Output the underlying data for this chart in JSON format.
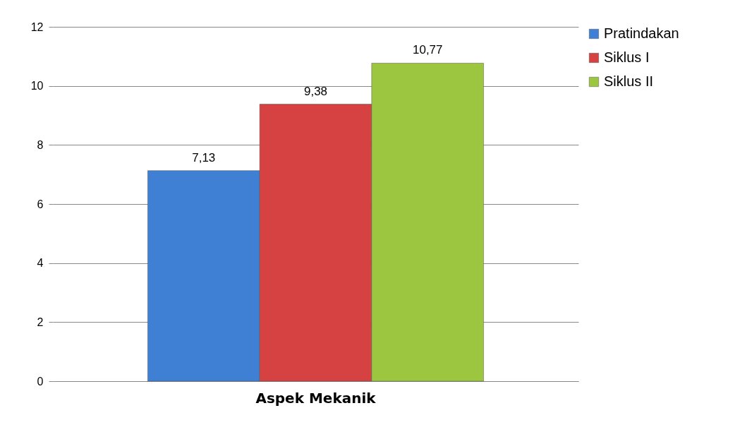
{
  "chart_data": {
    "type": "bar",
    "categories": [
      "Aspek Mekanik"
    ],
    "series": [
      {
        "name": "Pratindakan",
        "color": "#3f7fd4",
        "values": [
          7.13
        ],
        "value_labels": [
          "7,13"
        ]
      },
      {
        "name": "Siklus I",
        "color": "#d64141",
        "values": [
          9.38
        ],
        "value_labels": [
          "9,38"
        ]
      },
      {
        "name": "Siklus II",
        "color": "#9cc63f",
        "values": [
          10.77
        ],
        "value_labels": [
          "10,77"
        ]
      }
    ],
    "ylim": [
      0,
      12
    ],
    "yticks": [
      0,
      2,
      4,
      6,
      8,
      10,
      12
    ],
    "grid": "y",
    "legend": "right"
  }
}
